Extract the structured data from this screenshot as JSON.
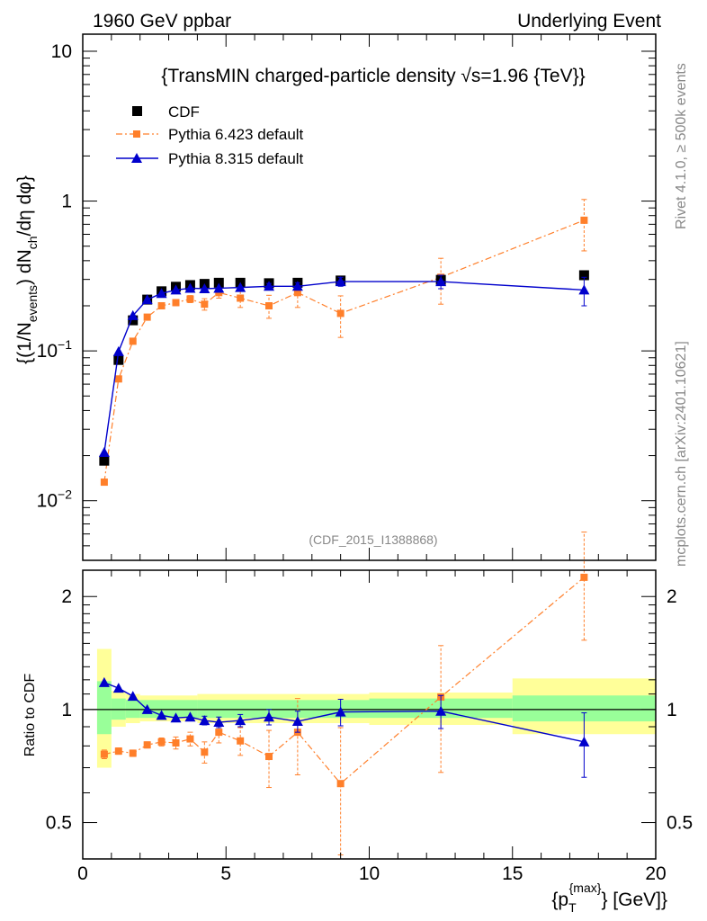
{
  "header": {
    "left": "1960 GeV ppbar",
    "right": "Underlying Event"
  },
  "side": {
    "rivet": "Rivet 4.1.0, ≥ 500k events",
    "mcplots": "mcplots.cern.ch [arXiv:2401.10621]"
  },
  "colors": {
    "cdf": "#000000",
    "p6": "#ff7f2a",
    "p8": "#0000cc",
    "band_outer": "#ffff99",
    "band_inner": "#99ff99"
  },
  "chart_data": [
    {
      "type": "scatter",
      "panel": "main",
      "title": "{TransMIN charged-particle density √s=1.96 {TeV}}",
      "ylabel_parts": [
        "{(1/N",
        "events",
        ") dN",
        "ch",
        "/dη dφ}"
      ],
      "yscale": "log",
      "ylim": [
        0.004,
        13
      ],
      "xlim": [
        0,
        20
      ],
      "ytick_labels": [
        {
          "v": 0.01,
          "base": "10",
          "exp": "−2"
        },
        {
          "v": 0.1,
          "base": "10",
          "exp": "−1"
        },
        {
          "v": 1,
          "base": "1",
          "exp": ""
        },
        {
          "v": 10,
          "base": "10",
          "exp": ""
        }
      ],
      "watermark": "(CDF_2015_I1388868)",
      "legend_position": "top-left",
      "series": [
        {
          "name": "CDF",
          "style": "black squares",
          "x": [
            0.75,
            1.25,
            1.75,
            2.25,
            2.75,
            3.25,
            3.75,
            4.25,
            4.75,
            5.5,
            6.5,
            7.5,
            9.0,
            12.5,
            17.5
          ],
          "values": [
            0.0185,
            0.087,
            0.16,
            0.22,
            0.25,
            0.268,
            0.275,
            0.28,
            0.285,
            0.285,
            0.283,
            0.285,
            0.295,
            0.298,
            0.32
          ]
        },
        {
          "name": "Pythia 6.423 default",
          "style": "orange dash-dot line, square markers",
          "x": [
            0.75,
            1.25,
            1.75,
            2.25,
            2.75,
            3.25,
            3.75,
            4.25,
            4.75,
            5.5,
            6.5,
            7.5,
            9.0,
            12.5,
            17.5
          ],
          "values": [
            0.0133,
            0.065,
            0.116,
            0.168,
            0.2,
            0.21,
            0.222,
            0.205,
            0.245,
            0.225,
            0.2,
            0.245,
            0.178,
            0.31,
            0.745
          ],
          "err": [
            0.0005,
            0.002,
            0.004,
            0.005,
            0.008,
            0.01,
            0.012,
            0.018,
            0.02,
            0.03,
            0.035,
            0.05,
            0.055,
            0.105,
            0.28
          ]
        },
        {
          "name": "Pythia 8.315 default",
          "style": "blue solid line, triangle markers",
          "x": [
            0.75,
            1.25,
            1.75,
            2.25,
            2.75,
            3.25,
            3.75,
            4.25,
            4.75,
            5.5,
            6.5,
            7.5,
            9.0,
            12.5,
            17.5
          ],
          "values": [
            0.021,
            0.099,
            0.172,
            0.22,
            0.242,
            0.255,
            0.262,
            0.26,
            0.262,
            0.265,
            0.27,
            0.27,
            0.29,
            0.29,
            0.255
          ],
          "err": [
            0.0004,
            0.001,
            0.002,
            0.003,
            0.004,
            0.005,
            0.006,
            0.007,
            0.008,
            0.01,
            0.012,
            0.015,
            0.02,
            0.03,
            0.055
          ]
        }
      ]
    },
    {
      "type": "scatter",
      "panel": "ratio",
      "ylabel": "Ratio to CDF",
      "xlabel": "{p_T^{max}} [GeV]",
      "xlabel_parts": [
        "{p",
        "T",
        "{max}",
        "} [GeV]}"
      ],
      "yscale": "log",
      "ylim": [
        0.4,
        2.35
      ],
      "xlim": [
        0,
        20
      ],
      "xticks": [
        0,
        5,
        10,
        15,
        20
      ],
      "xtick_labels": [
        "0",
        "5",
        "10",
        "15",
        "20"
      ],
      "yticks": [
        0.5,
        1,
        2
      ],
      "ytick_labels": [
        "0.5",
        "1",
        "2"
      ],
      "bands": [
        {
          "x0": 0.5,
          "x1": 1.0,
          "outer": [
            0.7,
            1.45
          ],
          "inner": [
            0.86,
            1.19
          ]
        },
        {
          "x0": 1.0,
          "x1": 1.5,
          "outer": [
            0.9,
            1.12
          ],
          "inner": [
            0.94,
            1.07
          ]
        },
        {
          "x0": 1.5,
          "x1": 2.0,
          "outer": [
            0.92,
            1.1
          ],
          "inner": [
            0.95,
            1.06
          ]
        },
        {
          "x0": 2.0,
          "x1": 4.0,
          "outer": [
            0.93,
            1.09
          ],
          "inner": [
            0.95,
            1.06
          ]
        },
        {
          "x0": 4.0,
          "x1": 10.0,
          "outer": [
            0.92,
            1.1
          ],
          "inner": [
            0.95,
            1.06
          ]
        },
        {
          "x0": 10.0,
          "x1": 15.0,
          "outer": [
            0.91,
            1.11
          ],
          "inner": [
            0.95,
            1.07
          ]
        },
        {
          "x0": 15.0,
          "x1": 20.0,
          "outer": [
            0.86,
            1.21
          ],
          "inner": [
            0.93,
            1.09
          ]
        }
      ],
      "series": [
        {
          "name": "Pythia 6.423 default",
          "x": [
            0.75,
            1.25,
            1.75,
            2.25,
            2.75,
            3.25,
            3.75,
            4.25,
            4.75,
            5.5,
            6.5,
            7.5,
            9.0,
            12.5,
            17.5
          ],
          "values": [
            0.76,
            0.775,
            0.765,
            0.805,
            0.82,
            0.815,
            0.835,
            0.77,
            0.87,
            0.825,
            0.75,
            0.87,
            0.635,
            1.08,
            2.25
          ],
          "err": [
            0.02,
            0.015,
            0.015,
            0.015,
            0.02,
            0.03,
            0.035,
            0.05,
            0.055,
            0.07,
            0.13,
            0.2,
            0.26,
            0.4,
            0.72
          ]
        },
        {
          "name": "Pythia 8.315 default",
          "x": [
            0.75,
            1.25,
            1.75,
            2.25,
            2.75,
            3.25,
            3.75,
            4.25,
            4.75,
            5.5,
            6.5,
            7.5,
            9.0,
            12.5,
            17.5
          ],
          "values": [
            1.18,
            1.14,
            1.085,
            1.0,
            0.965,
            0.95,
            0.955,
            0.935,
            0.925,
            0.935,
            0.955,
            0.93,
            0.985,
            0.99,
            0.82
          ],
          "err": [
            0.01,
            0.01,
            0.01,
            0.012,
            0.015,
            0.018,
            0.02,
            0.025,
            0.03,
            0.035,
            0.045,
            0.06,
            0.08,
            0.1,
            0.16
          ]
        }
      ]
    }
  ]
}
